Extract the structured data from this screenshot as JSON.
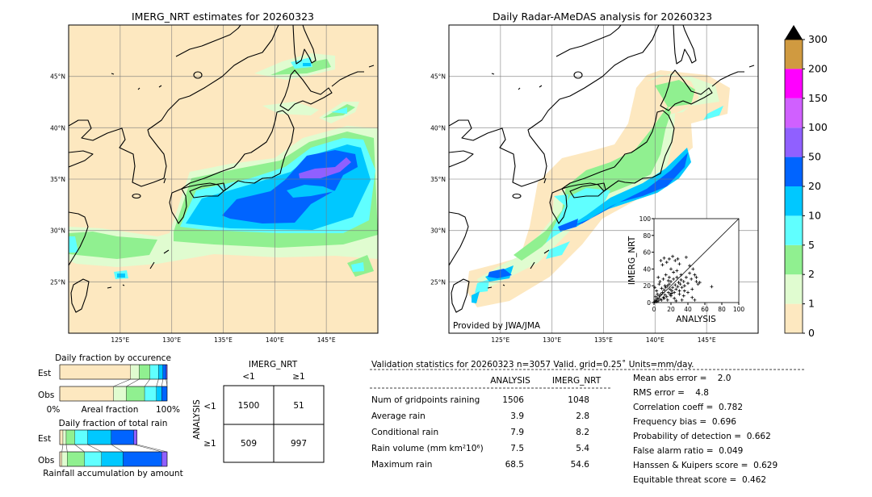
{
  "left_map": {
    "title": "IMERG_NRT estimates for 20260323"
  },
  "right_map": {
    "title": "Daily Radar-AMeDAS analysis for 20260323",
    "credit": "Provided by JWA/JMA"
  },
  "map_axes": {
    "extent": {
      "lon_min": 120,
      "lon_max": 150,
      "lat_min": 20,
      "lat_max": 50
    },
    "lon_ticks": [
      125,
      130,
      135,
      140,
      145
    ],
    "lon_labels": [
      "125°E",
      "130°E",
      "135°E",
      "140°E",
      "145°E"
    ],
    "lat_ticks": [
      45,
      40,
      35,
      30,
      25
    ],
    "lat_labels": [
      "45°N",
      "40°N",
      "35°N",
      "30°N",
      "25°N"
    ]
  },
  "colorbar": {
    "labels": [
      "0",
      "1",
      "2",
      "5",
      "10",
      "20",
      "50",
      "100",
      "150",
      "200",
      "300"
    ],
    "colors": [
      "#fde8c0",
      "#e0fcd0",
      "#90f090",
      "#60ffff",
      "#00c8ff",
      "#0064ff",
      "#9060ff",
      "#d060ff",
      "#ff00ff",
      "#d09a40"
    ],
    "extend_color": "#000000"
  },
  "chart_data": [
    {
      "type": "scatter",
      "xlabel": "ANALYSIS",
      "ylabel": "IMERG_NRT",
      "xlim": [
        0,
        100
      ],
      "ylim": [
        0,
        100
      ],
      "x_ticks": [
        "0",
        "20",
        "40",
        "60",
        "80",
        "100"
      ],
      "y_ticks": [
        "0",
        "20",
        "40",
        "60",
        "80",
        "100"
      ],
      "diagonal": true,
      "points": [
        [
          1,
          1
        ],
        [
          2,
          3
        ],
        [
          3,
          1
        ],
        [
          4,
          5
        ],
        [
          5,
          2
        ],
        [
          6,
          8
        ],
        [
          7,
          4
        ],
        [
          8,
          10
        ],
        [
          9,
          3
        ],
        [
          10,
          12
        ],
        [
          11,
          6
        ],
        [
          12,
          15
        ],
        [
          13,
          9
        ],
        [
          14,
          18
        ],
        [
          15,
          7
        ],
        [
          16,
          20
        ],
        [
          17,
          12
        ],
        [
          18,
          22
        ],
        [
          19,
          10
        ],
        [
          20,
          25
        ],
        [
          21,
          14
        ],
        [
          22,
          18
        ],
        [
          23,
          28
        ],
        [
          24,
          12
        ],
        [
          25,
          21
        ],
        [
          26,
          16
        ],
        [
          27,
          30
        ],
        [
          28,
          19
        ],
        [
          29,
          24
        ],
        [
          30,
          14
        ],
        [
          31,
          22
        ],
        [
          32,
          27
        ],
        [
          33,
          18
        ],
        [
          35,
          25
        ],
        [
          36,
          20
        ],
        [
          38,
          30
        ],
        [
          40,
          23
        ],
        [
          42,
          35
        ],
        [
          44,
          28
        ],
        [
          46,
          40
        ],
        [
          48,
          33
        ],
        [
          50,
          25
        ],
        [
          52,
          22
        ],
        [
          54,
          24
        ],
        [
          68,
          19
        ],
        [
          8,
          50
        ],
        [
          10,
          45
        ],
        [
          12,
          53
        ],
        [
          15,
          48
        ],
        [
          18,
          52
        ],
        [
          22,
          55
        ],
        [
          25,
          50
        ],
        [
          28,
          52
        ],
        [
          30,
          46
        ],
        [
          38,
          54
        ],
        [
          20,
          40
        ],
        [
          14,
          33
        ],
        [
          5,
          30
        ],
        [
          3,
          14
        ],
        [
          6,
          22
        ],
        [
          2,
          7
        ],
        [
          4,
          10
        ],
        [
          9,
          17
        ],
        [
          12,
          5
        ],
        [
          16,
          3
        ],
        [
          20,
          8
        ],
        [
          24,
          5
        ],
        [
          30,
          10
        ],
        [
          35,
          8
        ],
        [
          40,
          12
        ],
        [
          45,
          6
        ],
        [
          48,
          3
        ],
        [
          26,
          2
        ],
        [
          33,
          3
        ],
        [
          1,
          18
        ],
        [
          7,
          25
        ],
        [
          11,
          28
        ],
        [
          18,
          30
        ],
        [
          23,
          36
        ],
        [
          27,
          38
        ],
        [
          32,
          33
        ],
        [
          42,
          44
        ],
        [
          45,
          16
        ],
        [
          50,
          30
        ],
        [
          36,
          14
        ],
        [
          17,
          26
        ],
        [
          13,
          20
        ],
        [
          19,
          16
        ],
        [
          21,
          11
        ]
      ]
    },
    {
      "type": "bar",
      "title": "Daily fraction by occurence",
      "xlabel": "Areal fraction",
      "x_min_label": "0%",
      "x_max_label": "100%",
      "categories": [
        "Est",
        "Obs"
      ],
      "stacked_cumulative_percent": {
        "Est": [
          66,
          74,
          84,
          92,
          96,
          99,
          100
        ],
        "Obs": [
          50,
          62,
          79,
          90,
          95,
          100,
          100
        ]
      }
    },
    {
      "type": "bar",
      "title": "Daily fraction of total rain",
      "xlabel": "Rainfall accumulation by amount",
      "categories": [
        "Est",
        "Obs"
      ],
      "stacked_cumulative_percent": {
        "Est": [
          3,
          6,
          14,
          26,
          48,
          69,
          72
        ],
        "Obs": [
          2,
          7,
          23,
          39,
          59,
          95,
          100
        ]
      }
    }
  ],
  "contingency": {
    "col_title": "IMERG_NRT",
    "row_title": "ANALYSIS",
    "col_labels": [
      "<1",
      "≥1"
    ],
    "row_labels": [
      "<1",
      "≥1"
    ],
    "cells": [
      [
        "1500",
        "51"
      ],
      [
        "509",
        "997"
      ]
    ]
  },
  "stats": {
    "header": "Validation statistics for 20260323  n=3057 Valid. grid=0.25˚ Units=mm/day.",
    "col_headers": [
      "ANALYSIS",
      "IMERG_NRT"
    ],
    "rows": [
      {
        "label": "Num of gridpoints raining",
        "analysis": "1506",
        "imerg": "1048"
      },
      {
        "label": "Average rain",
        "analysis": "3.9",
        "imerg": "2.8"
      },
      {
        "label": "Conditional rain",
        "analysis": "7.9",
        "imerg": "8.2"
      },
      {
        "label": "Rain volume (mm km²10⁶)",
        "analysis": "7.5",
        "imerg": "5.4"
      },
      {
        "label": "Maximum rain",
        "analysis": "68.5",
        "imerg": "54.6"
      }
    ],
    "scores": [
      "Mean abs error =    2.0",
      "RMS error =    4.8",
      "Correlation coeff =  0.782",
      "Frequency bias =  0.696",
      "Probability of detection =  0.662",
      "False alarm ratio =  0.049",
      "Hanssen & Kuipers score =  0.629",
      "Equitable threat score =  0.462"
    ]
  }
}
